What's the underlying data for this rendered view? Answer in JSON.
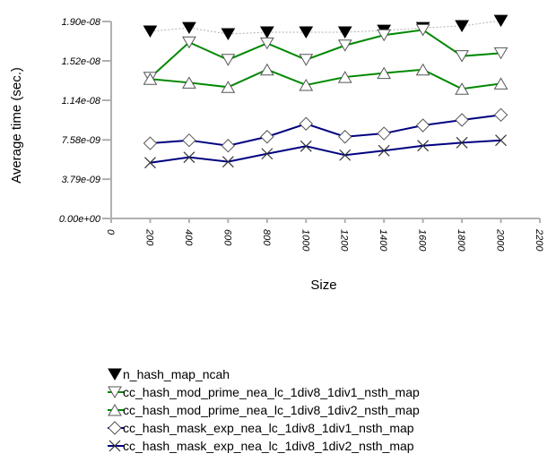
{
  "chart_data": {
    "type": "line",
    "title": "",
    "xlabel": "Size",
    "ylabel": "Average time (sec.)",
    "xlim": [
      0,
      2200
    ],
    "ylim": [
      0,
      1.9e-08
    ],
    "x_ticks": [
      "0",
      "200",
      "400",
      "600",
      "800",
      "1000",
      "1200",
      "1400",
      "1600",
      "1800",
      "2000",
      "2200"
    ],
    "y_ticks": [
      "0.00e+00",
      "3.79e-09",
      "7.58e-09",
      "1.14e-08",
      "1.52e-08",
      "1.90e-08"
    ],
    "grid": false,
    "legend_position": "bottom-left",
    "x": [
      200,
      400,
      600,
      800,
      1000,
      1200,
      1400,
      1600,
      1800,
      2000
    ],
    "series": [
      {
        "name": "n_hash_map_ncah",
        "color": "#b0b0b0",
        "line": "dotted",
        "marker": "filled-triangle-down",
        "values": [
          1.805e-08,
          1.839e-08,
          1.779e-08,
          1.796e-08,
          1.796e-08,
          1.796e-08,
          1.813e-08,
          1.839e-08,
          1.857e-08,
          1.908e-08
        ]
      },
      {
        "name": "cc_hash_mod_prime_nea_lc_1div8_1div1_nsth_map",
        "color": "#008800",
        "line": "solid",
        "marker": "open-triangle-down",
        "values": [
          1.358e-08,
          1.699e-08,
          1.531e-08,
          1.69e-08,
          1.531e-08,
          1.669e-08,
          1.768e-08,
          1.819e-08,
          1.566e-08,
          1.595e-08
        ]
      },
      {
        "name": "cc_hash_mod_prime_nea_lc_1div8_1div2_nsth_map",
        "color": "#008800",
        "line": "solid",
        "marker": "open-triangle-up",
        "values": [
          1.345e-08,
          1.31e-08,
          1.267e-08,
          1.436e-08,
          1.287e-08,
          1.364e-08,
          1.402e-08,
          1.436e-08,
          1.25e-08,
          1.301e-08
        ]
      },
      {
        "name": "cc_hash_mask_exp_nea_lc_1div8_1div1_nsth_map",
        "color": "#000080",
        "line": "solid",
        "marker": "open-diamond",
        "values": [
          7.25e-09,
          7.54e-09,
          7.02e-09,
          7.88e-09,
          9.13e-09,
          7.88e-09,
          8.2e-09,
          8.98e-09,
          9.5e-09,
          9.99e-09
        ]
      },
      {
        "name": "cc_hash_mask_exp_nea_lc_1div8_1div2_nsth_map",
        "color": "#000080",
        "line": "solid",
        "marker": "x-cross",
        "values": [
          5.38e-09,
          5.9e-09,
          5.47e-09,
          6.24e-09,
          6.97e-09,
          6.11e-09,
          6.54e-09,
          7.02e-09,
          7.31e-09,
          7.54e-09
        ]
      }
    ]
  }
}
